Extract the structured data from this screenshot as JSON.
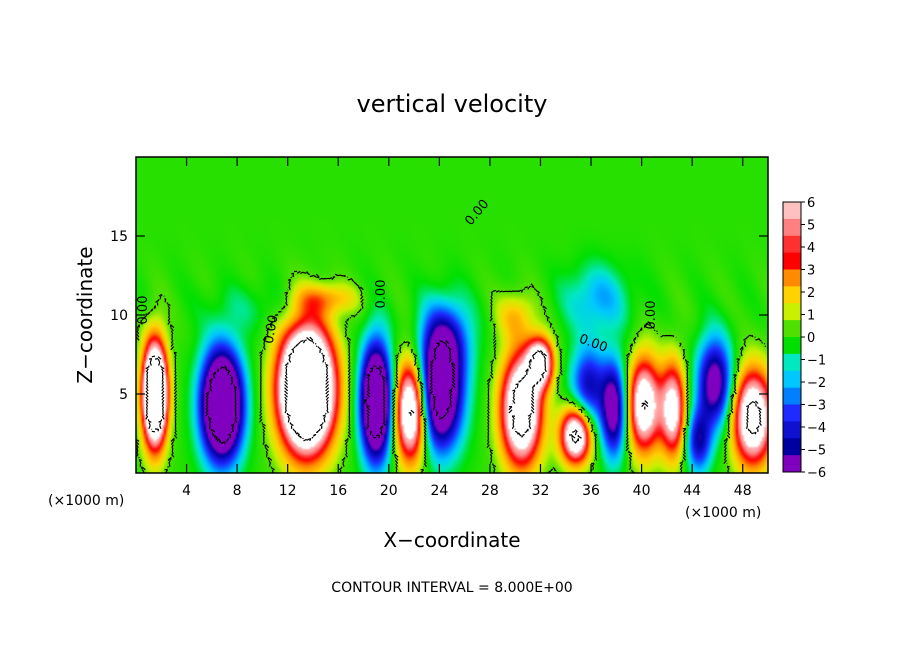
{
  "chart_data": {
    "type": "heatmap",
    "title": "vertical velocity",
    "xlabel": "X−coordinate",
    "ylabel": "Z−coordinate",
    "x_unit_label": "(×1000 m)",
    "y_unit_label": "(×1000 m)",
    "xlim": [
      0,
      50
    ],
    "ylim": [
      0,
      20
    ],
    "x_ticks": [
      4,
      8,
      12,
      16,
      20,
      24,
      28,
      32,
      36,
      40,
      44,
      48
    ],
    "x_tick_labels": [
      "4",
      "8",
      "12",
      "16",
      "20",
      "24",
      "28",
      "32",
      "36",
      "40",
      "44",
      "48"
    ],
    "y_ticks": [
      5,
      10,
      15
    ],
    "y_tick_labels": [
      "5",
      "10",
      "15"
    ],
    "colorbar": {
      "levels": [
        6,
        5,
        4,
        3,
        2,
        1,
        0,
        -1,
        -2,
        -3,
        -4,
        -5,
        -6
      ],
      "labels": [
        "6",
        "5",
        "4",
        "3",
        "2",
        "1",
        "0",
        "−1",
        "−2",
        "−3",
        "−4",
        "−5",
        "−6"
      ],
      "colors": [
        "#ffc0c0",
        "#ff8080",
        "#ff3030",
        "#ff0000",
        "#ff8c00",
        "#ffd200",
        "#c8f000",
        "#50e000",
        "#00e000",
        "#00e8c0",
        "#00c8ff",
        "#0080ff",
        "#1e2aff",
        "#1010d0",
        "#0000a0",
        "#8000c0"
      ]
    },
    "contour_interval_text": "CONTOUR INTERVAL = 8.000E+00",
    "contour_labels": [
      "0.00",
      "0.00",
      "0.00",
      "0.00",
      "0.00",
      "0.00"
    ],
    "cells": [
      {
        "x": 1.5,
        "z": 5.0,
        "w": 0.95,
        "h": 3.2,
        "v": 14
      },
      {
        "x": 6.8,
        "z": 4.3,
        "w": 1.6,
        "h": 3.4,
        "v": -13
      },
      {
        "x": 13.5,
        "z": 5.3,
        "w": 2.1,
        "h": 3.8,
        "v": 16
      },
      {
        "x": 19.0,
        "z": 4.5,
        "w": 1.2,
        "h": 3.6,
        "v": -12
      },
      {
        "x": 21.8,
        "z": 4.0,
        "w": 1.3,
        "h": 3.2,
        "v": 10
      },
      {
        "x": 24.0,
        "z": 5.0,
        "w": 1.8,
        "h": 3.5,
        "v": -10
      },
      {
        "x": 24.5,
        "z": 8.5,
        "w": 2.0,
        "h": 2.5,
        "v": -4
      },
      {
        "x": 30.5,
        "z": 4.0,
        "w": 1.6,
        "h": 3.5,
        "v": 10
      },
      {
        "x": 32.0,
        "z": 7.0,
        "w": 1.0,
        "h": 1.5,
        "v": 8
      },
      {
        "x": 34.8,
        "z": 2.4,
        "w": 1.2,
        "h": 1.8,
        "v": 9
      },
      {
        "x": 35.8,
        "z": 5.5,
        "w": 1.4,
        "h": 2.5,
        "v": -5
      },
      {
        "x": 37.8,
        "z": 4.0,
        "w": 1.0,
        "h": 3.0,
        "v": -7
      },
      {
        "x": 40.2,
        "z": 4.3,
        "w": 1.3,
        "h": 3.0,
        "v": 8
      },
      {
        "x": 42.5,
        "z": 4.0,
        "w": 1.0,
        "h": 3.0,
        "v": 7
      },
      {
        "x": 45.8,
        "z": 5.7,
        "w": 1.4,
        "h": 2.8,
        "v": -7
      },
      {
        "x": 44.5,
        "z": 2.0,
        "w": 1.0,
        "h": 2.0,
        "v": -5
      },
      {
        "x": 48.8,
        "z": 3.5,
        "w": 1.6,
        "h": 3.0,
        "v": 9
      },
      {
        "x": 36.5,
        "z": 11.0,
        "w": 2.6,
        "h": 2.2,
        "v": -2.5
      },
      {
        "x": 30.0,
        "z": 10.0,
        "w": 1.5,
        "h": 1.5,
        "v": 2
      },
      {
        "x": 15.0,
        "z": 11.0,
        "w": 2.5,
        "h": 1.0,
        "v": 2.5
      },
      {
        "x": 10.0,
        "z": 10.5,
        "w": 4.0,
        "h": 1.5,
        "v": -0.9
      }
    ]
  }
}
